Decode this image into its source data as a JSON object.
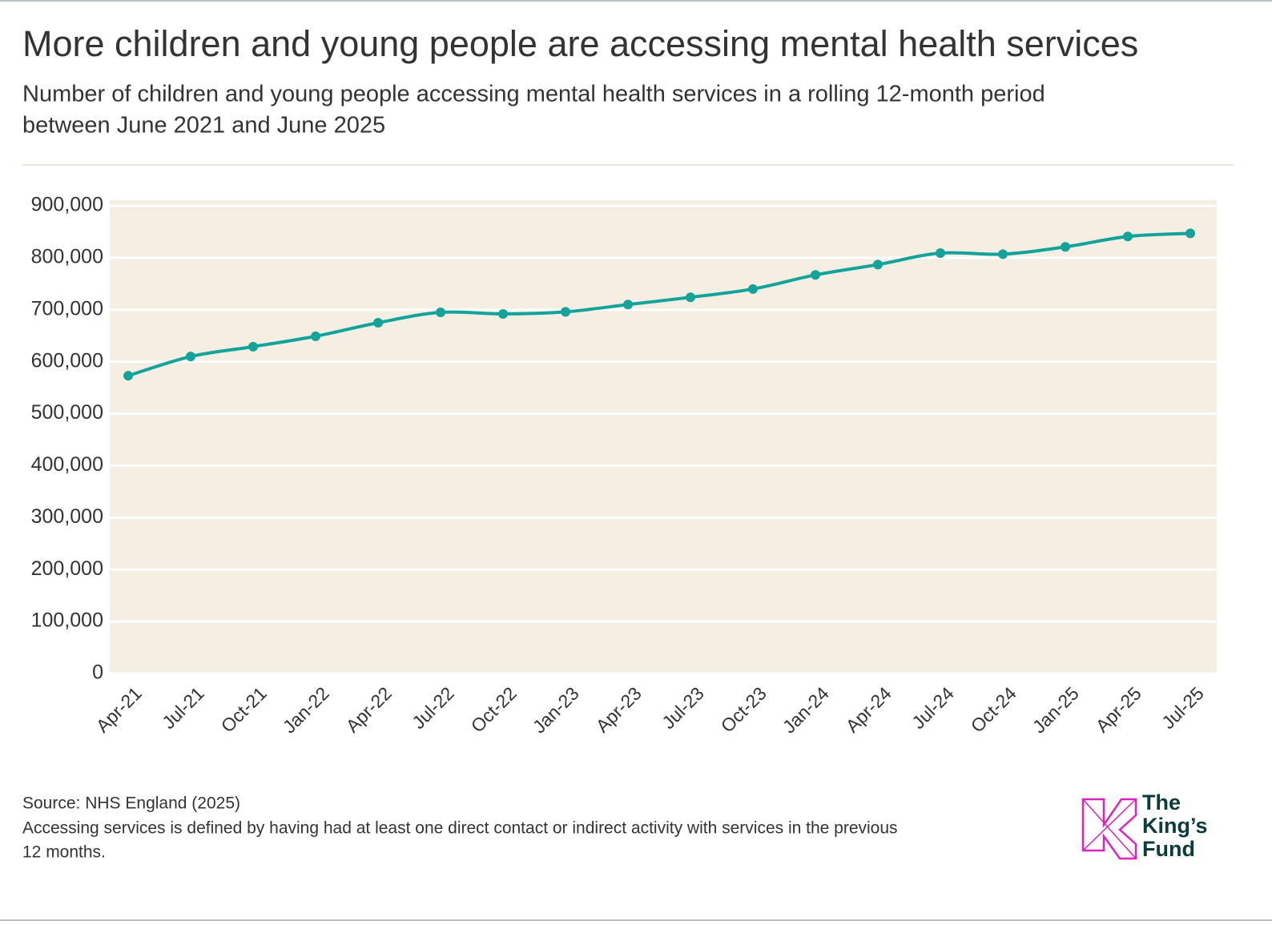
{
  "chart_data": {
    "type": "line",
    "title": "More children and young people are accessing mental health services",
    "subtitle": [
      "Number of children and young people accessing mental health services in a rolling 12-month period",
      "between June 2021 and June 2025"
    ],
    "categories": [
      "Apr-21",
      "Jul-21",
      "Oct-21",
      "Jan-22",
      "Apr-22",
      "Jul-22",
      "Oct-22",
      "Jan-23",
      "Apr-23",
      "Jul-23",
      "Oct-23",
      "Jan-24",
      "Apr-24",
      "Jul-24",
      "Oct-24",
      "Jan-25",
      "Apr-25",
      "Jul-25"
    ],
    "values": [
      573000,
      610000,
      629000,
      649000,
      675000,
      695000,
      692000,
      696000,
      710000,
      724000,
      740000,
      767000,
      787000,
      809000,
      807000,
      821000,
      841000,
      847000
    ],
    "color": "#13a39a",
    "ylim": [
      0,
      900000
    ],
    "yticks": [
      0,
      {
        "value": 100000,
        "label": "100,000"
      },
      {
        "value": 200000,
        "label": "200,000"
      },
      {
        "value": 300000,
        "label": "300,000"
      },
      {
        "value": 400000,
        "label": "400,000"
      },
      {
        "value": 500000,
        "label": "500,000"
      },
      {
        "value": 600000,
        "label": "600,000"
      },
      {
        "value": 700000,
        "label": "700,000"
      },
      {
        "value": 800000,
        "label": "800,000"
      },
      {
        "value": 900000,
        "label": "900,000"
      }
    ],
    "grid": true,
    "source": "Source: NHS England (2025)",
    "note": [
      "Accessing services is defined by having had at least one direct contact or indirect activity with services in the previous",
      "12 months."
    ],
    "logo": [
      "The",
      "King’s",
      "Fund"
    ]
  }
}
